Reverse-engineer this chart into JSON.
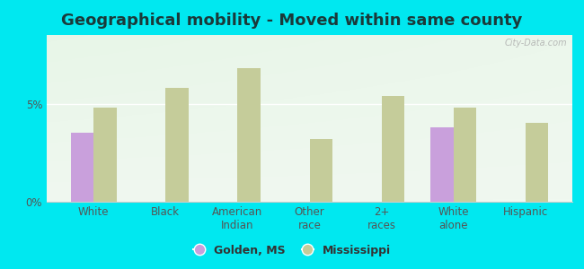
{
  "title": "Geographical mobility - Moved within same county",
  "categories": [
    "White",
    "Black",
    "American\nIndian",
    "Other\nrace",
    "2+\nraces",
    "White\nalone",
    "Hispanic"
  ],
  "golden_values": [
    3.5,
    0,
    0,
    0,
    0,
    3.8,
    0
  ],
  "ms_values": [
    4.8,
    5.8,
    6.8,
    3.2,
    5.4,
    4.8,
    4.0
  ],
  "golden_color": "#c9a0dc",
  "ms_color": "#c5cc9a",
  "background_outer": "#00e8f0",
  "ylim": [
    0,
    8.5
  ],
  "ytick_labels": [
    "0%",
    "5%"
  ],
  "ytick_vals": [
    0,
    5
  ],
  "bar_width": 0.32,
  "legend_golden": "Golden, MS",
  "legend_ms": "Mississippi",
  "watermark": "City-Data.com",
  "title_fontsize": 13,
  "axis_fontsize": 8.5,
  "legend_fontsize": 9,
  "title_color": "#1a3a3a"
}
